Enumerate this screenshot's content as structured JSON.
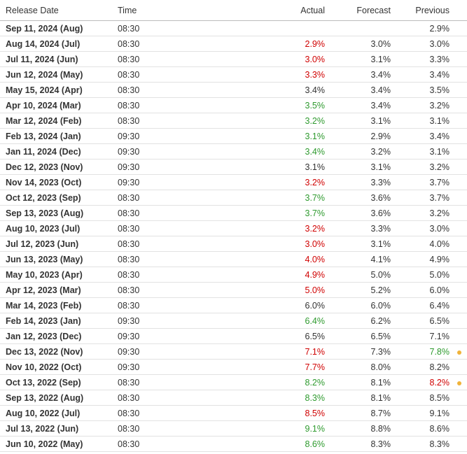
{
  "columns": {
    "release_date": "Release Date",
    "time": "Time",
    "actual": "Actual",
    "forecast": "Forecast",
    "previous": "Previous"
  },
  "colors": {
    "up": "#2e9a2e",
    "down": "#d00000",
    "revision_dot": "#f0b33a"
  },
  "rows": [
    {
      "date": "Sep 11, 2024 (Aug)",
      "time": "08:30",
      "actual": "",
      "actual_color": "",
      "forecast": "",
      "previous": "2.9%",
      "previous_color": "",
      "revised": false
    },
    {
      "date": "Aug 14, 2024 (Jul)",
      "time": "08:30",
      "actual": "2.9%",
      "actual_color": "red",
      "forecast": "3.0%",
      "previous": "3.0%",
      "previous_color": "",
      "revised": false
    },
    {
      "date": "Jul 11, 2024 (Jun)",
      "time": "08:30",
      "actual": "3.0%",
      "actual_color": "red",
      "forecast": "3.1%",
      "previous": "3.3%",
      "previous_color": "",
      "revised": false
    },
    {
      "date": "Jun 12, 2024 (May)",
      "time": "08:30",
      "actual": "3.3%",
      "actual_color": "red",
      "forecast": "3.4%",
      "previous": "3.4%",
      "previous_color": "",
      "revised": false
    },
    {
      "date": "May 15, 2024 (Apr)",
      "time": "08:30",
      "actual": "3.4%",
      "actual_color": "",
      "forecast": "3.4%",
      "previous": "3.5%",
      "previous_color": "",
      "revised": false
    },
    {
      "date": "Apr 10, 2024 (Mar)",
      "time": "08:30",
      "actual": "3.5%",
      "actual_color": "green",
      "forecast": "3.4%",
      "previous": "3.2%",
      "previous_color": "",
      "revised": false
    },
    {
      "date": "Mar 12, 2024 (Feb)",
      "time": "08:30",
      "actual": "3.2%",
      "actual_color": "green",
      "forecast": "3.1%",
      "previous": "3.1%",
      "previous_color": "",
      "revised": false
    },
    {
      "date": "Feb 13, 2024 (Jan)",
      "time": "09:30",
      "actual": "3.1%",
      "actual_color": "green",
      "forecast": "2.9%",
      "previous": "3.4%",
      "previous_color": "",
      "revised": false
    },
    {
      "date": "Jan 11, 2024 (Dec)",
      "time": "09:30",
      "actual": "3.4%",
      "actual_color": "green",
      "forecast": "3.2%",
      "previous": "3.1%",
      "previous_color": "",
      "revised": false
    },
    {
      "date": "Dec 12, 2023 (Nov)",
      "time": "09:30",
      "actual": "3.1%",
      "actual_color": "",
      "forecast": "3.1%",
      "previous": "3.2%",
      "previous_color": "",
      "revised": false
    },
    {
      "date": "Nov 14, 2023 (Oct)",
      "time": "09:30",
      "actual": "3.2%",
      "actual_color": "red",
      "forecast": "3.3%",
      "previous": "3.7%",
      "previous_color": "",
      "revised": false
    },
    {
      "date": "Oct 12, 2023 (Sep)",
      "time": "08:30",
      "actual": "3.7%",
      "actual_color": "green",
      "forecast": "3.6%",
      "previous": "3.7%",
      "previous_color": "",
      "revised": false
    },
    {
      "date": "Sep 13, 2023 (Aug)",
      "time": "08:30",
      "actual": "3.7%",
      "actual_color": "green",
      "forecast": "3.6%",
      "previous": "3.2%",
      "previous_color": "",
      "revised": false
    },
    {
      "date": "Aug 10, 2023 (Jul)",
      "time": "08:30",
      "actual": "3.2%",
      "actual_color": "red",
      "forecast": "3.3%",
      "previous": "3.0%",
      "previous_color": "",
      "revised": false
    },
    {
      "date": "Jul 12, 2023 (Jun)",
      "time": "08:30",
      "actual": "3.0%",
      "actual_color": "red",
      "forecast": "3.1%",
      "previous": "4.0%",
      "previous_color": "",
      "revised": false
    },
    {
      "date": "Jun 13, 2023 (May)",
      "time": "08:30",
      "actual": "4.0%",
      "actual_color": "red",
      "forecast": "4.1%",
      "previous": "4.9%",
      "previous_color": "",
      "revised": false
    },
    {
      "date": "May 10, 2023 (Apr)",
      "time": "08:30",
      "actual": "4.9%",
      "actual_color": "red",
      "forecast": "5.0%",
      "previous": "5.0%",
      "previous_color": "",
      "revised": false
    },
    {
      "date": "Apr 12, 2023 (Mar)",
      "time": "08:30",
      "actual": "5.0%",
      "actual_color": "red",
      "forecast": "5.2%",
      "previous": "6.0%",
      "previous_color": "",
      "revised": false
    },
    {
      "date": "Mar 14, 2023 (Feb)",
      "time": "08:30",
      "actual": "6.0%",
      "actual_color": "",
      "forecast": "6.0%",
      "previous": "6.4%",
      "previous_color": "",
      "revised": false
    },
    {
      "date": "Feb 14, 2023 (Jan)",
      "time": "09:30",
      "actual": "6.4%",
      "actual_color": "green",
      "forecast": "6.2%",
      "previous": "6.5%",
      "previous_color": "",
      "revised": false
    },
    {
      "date": "Jan 12, 2023 (Dec)",
      "time": "09:30",
      "actual": "6.5%",
      "actual_color": "",
      "forecast": "6.5%",
      "previous": "7.1%",
      "previous_color": "",
      "revised": false
    },
    {
      "date": "Dec 13, 2022 (Nov)",
      "time": "09:30",
      "actual": "7.1%",
      "actual_color": "red",
      "forecast": "7.3%",
      "previous": "7.8%",
      "previous_color": "green",
      "revised": true
    },
    {
      "date": "Nov 10, 2022 (Oct)",
      "time": "09:30",
      "actual": "7.7%",
      "actual_color": "red",
      "forecast": "8.0%",
      "previous": "8.2%",
      "previous_color": "",
      "revised": false
    },
    {
      "date": "Oct 13, 2022 (Sep)",
      "time": "08:30",
      "actual": "8.2%",
      "actual_color": "green",
      "forecast": "8.1%",
      "previous": "8.2%",
      "previous_color": "red",
      "revised": true
    },
    {
      "date": "Sep 13, 2022 (Aug)",
      "time": "08:30",
      "actual": "8.3%",
      "actual_color": "green",
      "forecast": "8.1%",
      "previous": "8.5%",
      "previous_color": "",
      "revised": false
    },
    {
      "date": "Aug 10, 2022 (Jul)",
      "time": "08:30",
      "actual": "8.5%",
      "actual_color": "red",
      "forecast": "8.7%",
      "previous": "9.1%",
      "previous_color": "",
      "revised": false
    },
    {
      "date": "Jul 13, 2022 (Jun)",
      "time": "08:30",
      "actual": "9.1%",
      "actual_color": "green",
      "forecast": "8.8%",
      "previous": "8.6%",
      "previous_color": "",
      "revised": false
    },
    {
      "date": "Jun 10, 2022 (May)",
      "time": "08:30",
      "actual": "8.6%",
      "actual_color": "green",
      "forecast": "8.3%",
      "previous": "8.3%",
      "previous_color": "",
      "revised": false
    }
  ]
}
